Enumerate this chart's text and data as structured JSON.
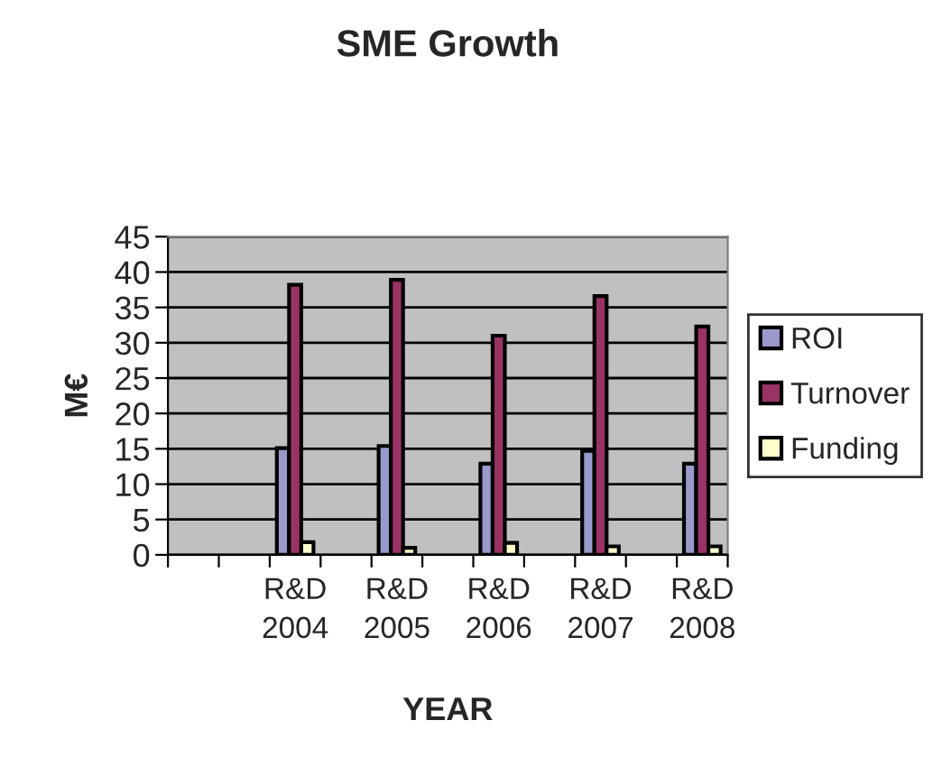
{
  "chart_data": {
    "type": "bar",
    "title": "SME Growth",
    "xlabel": "YEAR",
    "ylabel": "M€",
    "categories": [
      null,
      null,
      "R&D\n2004",
      null,
      "R&D\n2005",
      null,
      "R&D\n2006",
      null,
      "R&D\n2007",
      null,
      "R&D\n2008"
    ],
    "series": [
      {
        "name": "ROI",
        "color": "#9999cc",
        "values": [
          null,
          null,
          15.1,
          null,
          15.4,
          null,
          12.9,
          null,
          14.7,
          null,
          12.9
        ]
      },
      {
        "name": "Turnover",
        "color": "#993366",
        "values": [
          null,
          null,
          38.2,
          null,
          38.9,
          null,
          31,
          null,
          36.6,
          null,
          32.3
        ]
      },
      {
        "name": "Funding",
        "color": "#ffffcc",
        "values": [
          null,
          null,
          1.8,
          null,
          1.0,
          null,
          1.7,
          null,
          1.2,
          null,
          1.2
        ]
      }
    ],
    "ylim": [
      0,
      45
    ],
    "yticks": [
      0,
      5,
      10,
      15,
      20,
      25,
      30,
      35,
      40,
      45
    ],
    "grid": "y",
    "legend": "right"
  }
}
